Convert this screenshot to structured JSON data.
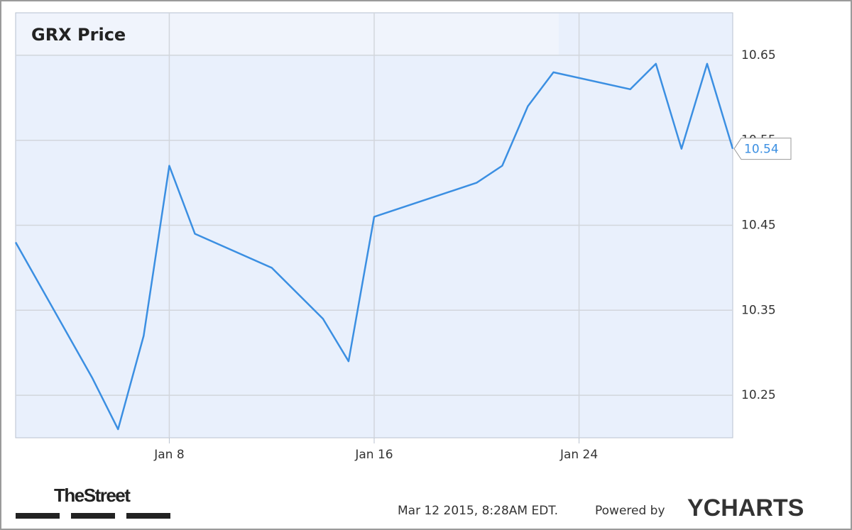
{
  "chart_data": {
    "type": "line",
    "title": "GRX Price",
    "x": [
      2,
      5,
      6,
      7,
      8,
      9,
      12,
      14,
      15,
      16,
      20,
      21,
      22,
      23,
      26,
      27,
      28,
      29,
      30
    ],
    "series": [
      {
        "name": "GRX",
        "color": "#3b8fe2",
        "values": [
          10.43,
          10.27,
          10.21,
          10.32,
          10.52,
          10.44,
          10.4,
          10.34,
          10.29,
          10.46,
          10.5,
          10.52,
          10.59,
          10.63,
          10.61,
          10.64,
          10.54,
          10.64,
          10.54
        ]
      }
    ],
    "xlim": [
      2,
      30
    ],
    "xticks": [
      {
        "value": 8,
        "label": "Jan 8"
      },
      {
        "value": 16,
        "label": "Jan 16"
      },
      {
        "value": 24,
        "label": "Jan 24"
      }
    ],
    "ylim": [
      10.2,
      10.7
    ],
    "yticks": [
      10.25,
      10.35,
      10.45,
      10.55,
      10.65
    ],
    "grid": true
  },
  "footer": {
    "brand": "TheStreet",
    "timestamp": "Mar 12 2015, 8:28AM EDT.",
    "powered": "Powered by",
    "provider": "YCHARTS"
  }
}
